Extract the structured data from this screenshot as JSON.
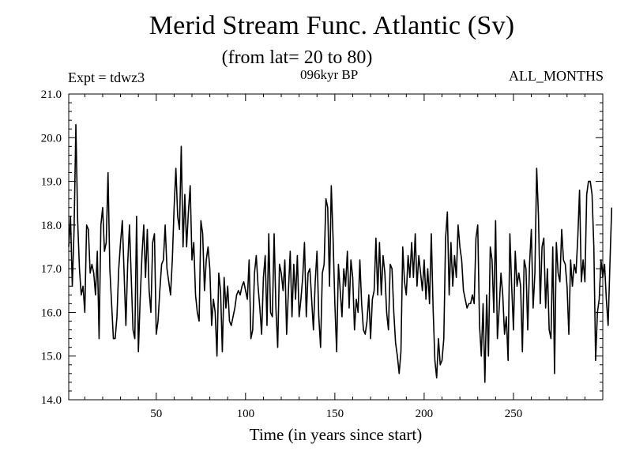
{
  "header": {
    "title": "Merid Stream Func. Atlantic (Sv)",
    "subtitle": "(from lat= 20 to 80)",
    "experiment": "Expt = tdwz3",
    "period": "096kyr BP",
    "months": "ALL_MONTHS"
  },
  "chart_data": {
    "type": "line",
    "title": "Merid Stream Func. Atlantic (Sv)",
    "subtitle": "(from lat= 20 to 80)",
    "xlabel": "Time (in years since start)",
    "ylabel": "",
    "xlim": [
      1,
      300
    ],
    "ylim": [
      14.0,
      21.0
    ],
    "x_ticks": [
      50,
      100,
      150,
      200,
      250
    ],
    "y_ticks": [
      14.0,
      15.0,
      16.0,
      17.0,
      18.0,
      19.0,
      20.0,
      21.0
    ],
    "y_tick_labels": [
      "14.0",
      "15.0",
      "16.0",
      "17.0",
      "18.0",
      "19.0",
      "20.0",
      "21.0"
    ],
    "x_tick_labels": [
      "50",
      "100",
      "150",
      "200",
      "250"
    ],
    "grid": false,
    "line_color": "#000000",
    "series": [
      {
        "x_start": 1,
        "x_step": 1,
        "values": [
          17.5,
          18.2,
          16.6,
          17.9,
          20.3,
          18.1,
          17.0,
          16.4,
          16.6,
          16.0,
          18.0,
          17.9,
          16.9,
          17.1,
          16.9,
          16.4,
          17.4,
          15.4,
          18.0,
          18.4,
          17.4,
          17.6,
          19.2,
          17.0,
          16.2,
          15.4,
          15.4,
          15.9,
          17.0,
          17.6,
          18.1,
          16.9,
          15.7,
          17.1,
          18.0,
          16.8,
          15.6,
          15.4,
          18.2,
          15.1,
          16.3,
          17.3,
          18.0,
          16.8,
          17.9,
          16.5,
          16.0,
          17.6,
          17.8,
          15.5,
          15.8,
          16.5,
          17.1,
          17.2,
          18.0,
          17.0,
          16.7,
          16.4,
          17.2,
          18.4,
          19.3,
          18.2,
          17.9,
          19.8,
          17.5,
          18.7,
          17.5,
          18.3,
          18.9,
          17.2,
          17.6,
          16.4,
          16.0,
          15.8,
          18.1,
          17.8,
          16.5,
          17.2,
          17.5,
          17.0,
          15.7,
          16.3,
          16.0,
          15.0,
          16.9,
          16.5,
          15.1,
          16.8,
          16.1,
          16.6,
          15.8,
          15.7,
          15.9,
          16.1,
          16.4,
          16.5,
          16.4,
          16.6,
          16.7,
          16.5,
          16.3,
          17.2,
          15.4,
          15.6,
          16.9,
          17.3,
          16.6,
          16.1,
          15.5,
          16.8,
          17.3,
          15.7,
          17.8,
          16.0,
          15.9,
          17.8,
          16.1,
          15.2,
          17.1,
          16.9,
          16.5,
          17.2,
          15.5,
          16.5,
          17.4,
          15.9,
          17.1,
          16.3,
          17.3,
          15.9,
          16.3,
          16.8,
          17.6,
          15.9,
          16.9,
          17.0,
          16.3,
          15.6,
          16.7,
          17.4,
          15.9,
          15.2,
          16.9,
          17.1,
          18.6,
          18.4,
          16.6,
          18.9,
          17.7,
          16.2,
          15.1,
          17.1,
          16.5,
          15.9,
          17.0,
          16.6,
          17.4,
          16.1,
          17.2,
          16.8,
          15.6,
          16.3,
          16.0,
          17.2,
          16.2,
          15.6,
          15.5,
          15.8,
          16.4,
          15.4,
          16.3,
          16.5,
          17.7,
          16.4,
          17.6,
          16.4,
          17.3,
          16.9,
          16.0,
          15.6,
          17.1,
          17.0,
          16.0,
          15.3,
          15.0,
          14.6,
          15.1,
          17.5,
          16.7,
          16.4,
          17.3,
          16.8,
          17.6,
          16.8,
          17.8,
          16.6,
          17.3,
          16.9,
          16.5,
          17.2,
          16.3,
          17.0,
          16.2,
          17.8,
          16.1,
          14.9,
          14.5,
          15.4,
          14.8,
          14.9,
          15.4,
          17.7,
          18.3,
          16.4,
          17.6,
          16.6,
          17.3,
          16.8,
          18.0,
          17.5,
          17.2,
          16.5,
          16.3,
          16.1,
          16.2,
          16.2,
          16.4,
          16.2,
          17.7,
          18.0,
          15.7,
          15.0,
          16.2,
          14.4,
          16.4,
          15.0,
          17.5,
          17.2,
          16.0,
          18.1,
          15.4,
          16.1,
          16.9,
          16.4,
          15.5,
          15.9,
          14.9,
          17.8,
          16.6,
          15.6,
          17.4,
          16.6,
          16.9,
          16.6,
          15.1,
          17.2,
          17.0,
          15.6,
          17.1,
          17.9,
          16.1,
          16.9,
          19.3,
          18.2,
          16.2,
          17.5,
          17.7,
          16.1,
          17.0,
          15.6,
          15.4,
          17.5,
          14.6,
          17.6,
          16.9,
          16.7,
          17.9,
          17.2,
          17.1,
          16.6,
          15.5,
          17.2,
          16.6,
          17.1,
          16.9,
          17.7,
          18.8,
          16.7,
          17.2,
          16.7,
          18.7,
          19.0,
          19.0,
          18.7,
          17.5,
          14.9,
          16.0,
          16.3,
          17.2,
          16.8,
          17.1,
          16.3,
          15.7,
          17.1,
          18.4
        ]
      }
    ]
  }
}
